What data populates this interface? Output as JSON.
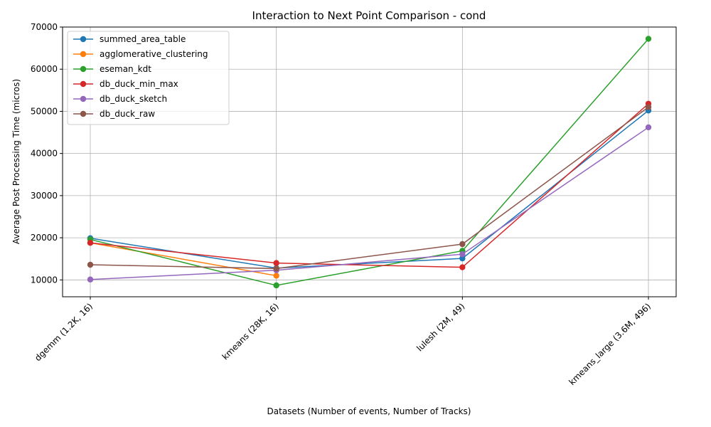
{
  "chart_data": {
    "type": "line",
    "title": "Interaction to Next Point Comparison - cond",
    "xlabel": "Datasets (Number of events, Number of Tracks)",
    "ylabel": "Average Post Processing Time (micros)",
    "categories": [
      "dgemm (1.2K, 16)",
      "kmeans (28K, 16)",
      "lulesh (2M, 49)",
      "kmeans_large (3.6M, 496)"
    ],
    "ylim": [
      6000,
      70000
    ],
    "yticks": [
      10000,
      20000,
      30000,
      40000,
      50000,
      60000,
      70000
    ],
    "grid": true,
    "legend_position": "top-left",
    "series": [
      {
        "name": "summed_area_table",
        "color": "#1f77b4",
        "values": [
          19900,
          12800,
          15100,
          50200
        ]
      },
      {
        "name": "agglomerative_clustering",
        "color": "#ff7f0e",
        "values": [
          18800,
          11000,
          null,
          null
        ]
      },
      {
        "name": "eseman_kdt",
        "color": "#2ca02c",
        "values": [
          19600,
          8700,
          16900,
          67200
        ]
      },
      {
        "name": "db_duck_min_max",
        "color": "#d62728",
        "values": [
          18800,
          14000,
          13000,
          51800
        ]
      },
      {
        "name": "db_duck_sketch",
        "color": "#9467bd",
        "values": [
          10100,
          12300,
          16100,
          46200
        ]
      },
      {
        "name": "db_duck_raw",
        "color": "#8c564b",
        "values": [
          13600,
          12700,
          18500,
          51000
        ]
      }
    ]
  }
}
